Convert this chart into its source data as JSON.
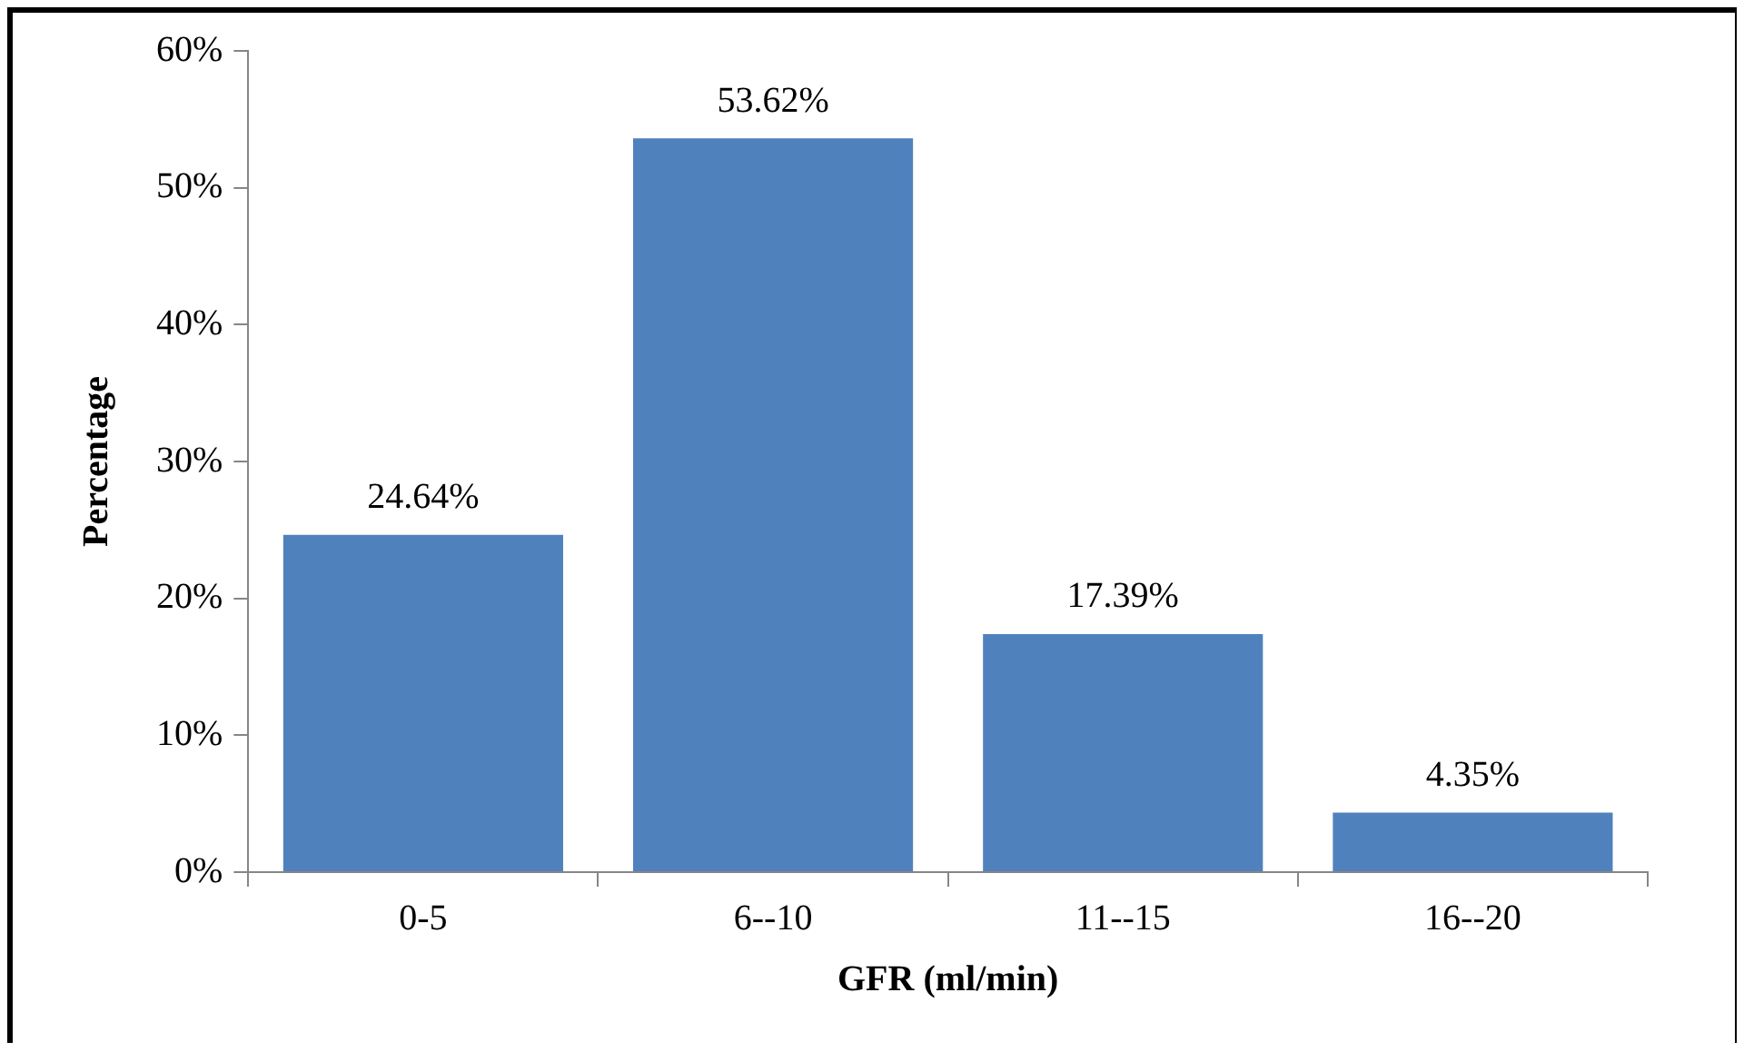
{
  "chart_data": {
    "type": "bar",
    "xlabel": "GFR (ml/min)",
    "ylabel": "Percentage",
    "categories": [
      "0-5",
      "6--10",
      "11--15",
      "16--20"
    ],
    "values": [
      24.64,
      53.62,
      17.39,
      4.35
    ],
    "value_labels": [
      "24.64%",
      "53.62%",
      "17.39%",
      "4.35%"
    ],
    "color": "#4f81bd",
    "ylim": [
      0,
      60
    ],
    "yticks": [
      {
        "value": 0,
        "label": "0%"
      },
      {
        "value": 10,
        "label": "10%"
      },
      {
        "value": 20,
        "label": "20%"
      },
      {
        "value": 30,
        "label": "30%"
      },
      {
        "value": 40,
        "label": "40%"
      },
      {
        "value": 50,
        "label": "50%"
      },
      {
        "value": 60,
        "label": "60%"
      }
    ],
    "legend": false
  }
}
